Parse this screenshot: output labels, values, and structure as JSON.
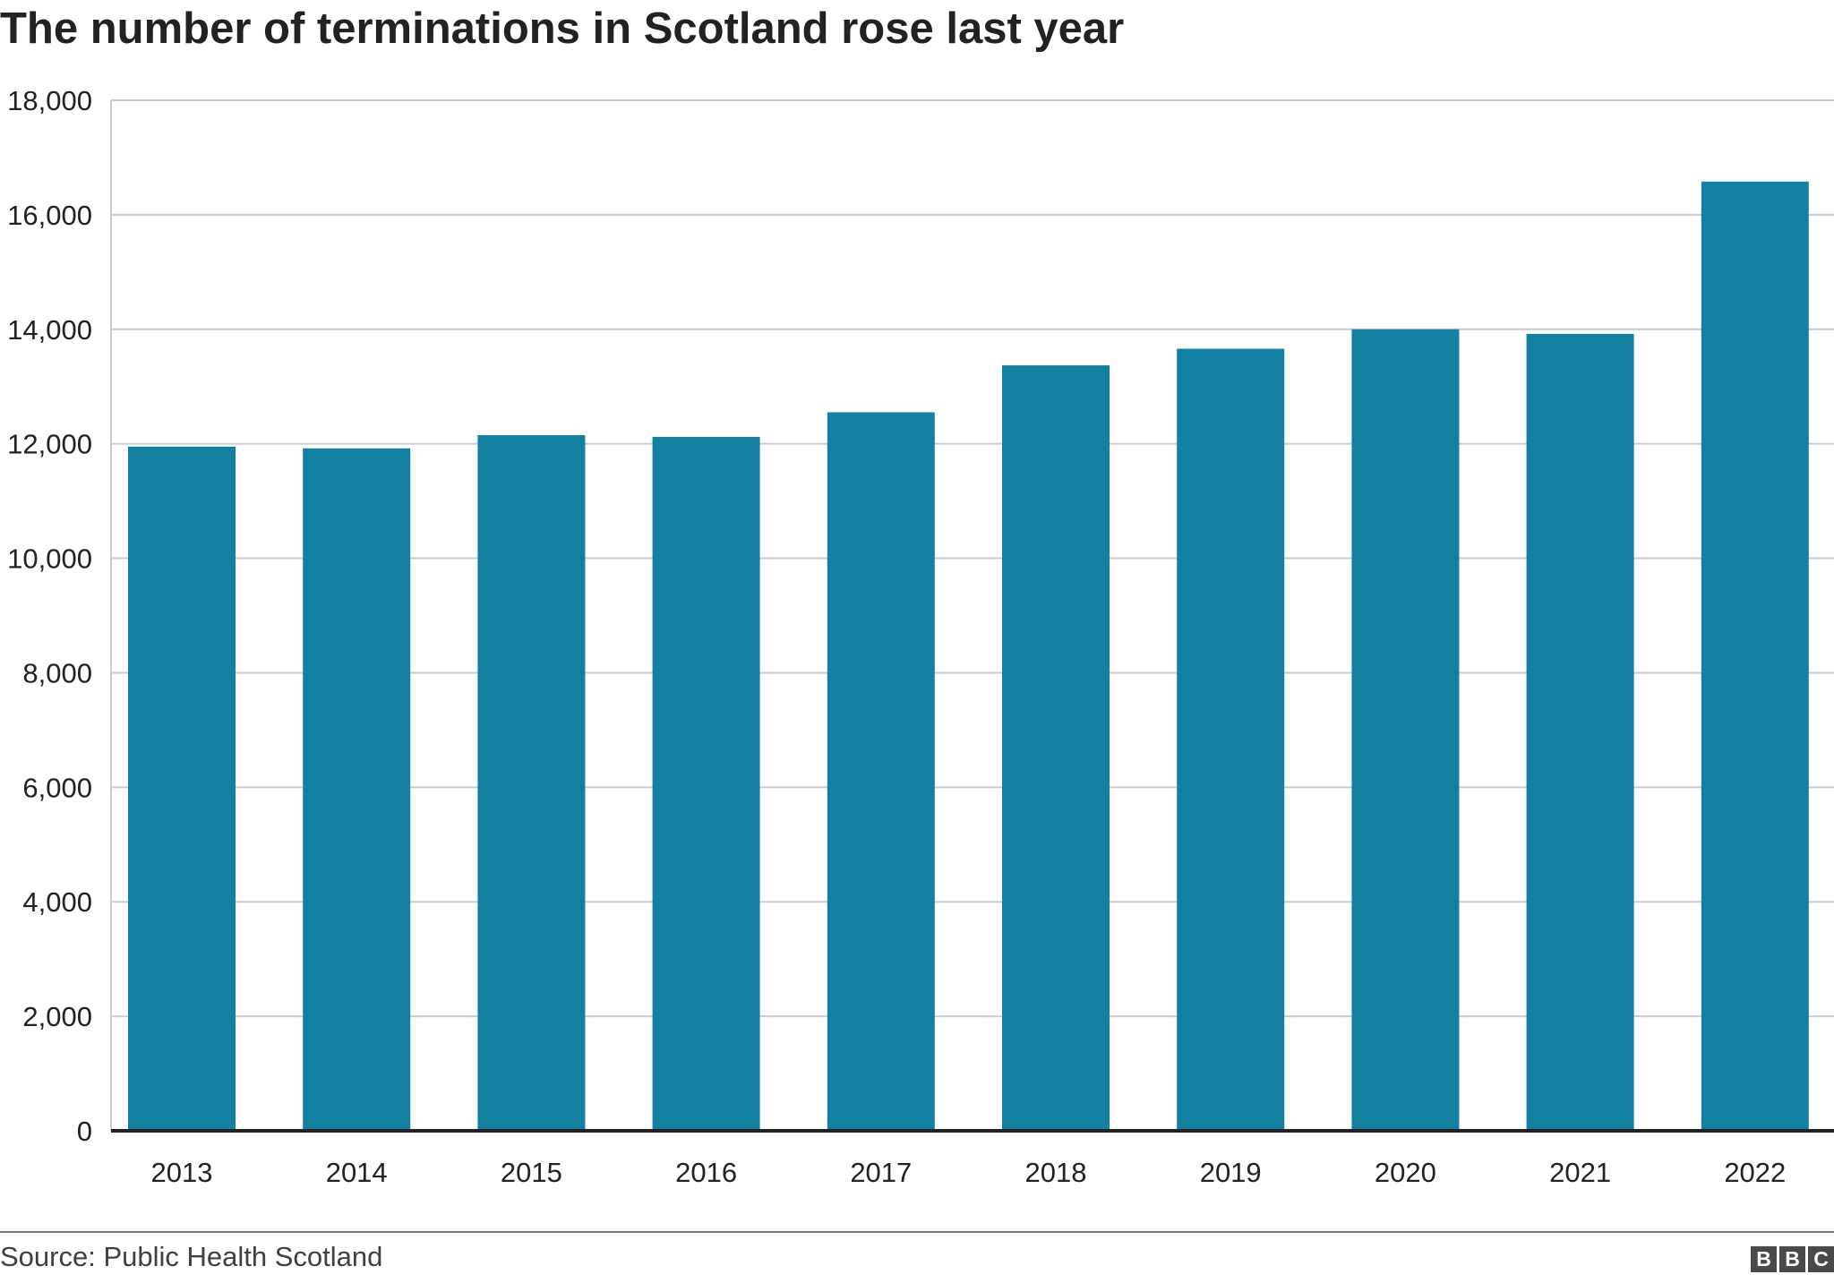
{
  "chart_data": {
    "type": "bar",
    "title": "The number of terminations in Scotland rose last year",
    "categories": [
      "2013",
      "2014",
      "2015",
      "2016",
      "2017",
      "2018",
      "2019",
      "2020",
      "2021",
      "2022"
    ],
    "values": [
      11950,
      11920,
      12150,
      12120,
      12550,
      13370,
      13660,
      14000,
      13920,
      16580
    ],
    "ylim": [
      0,
      18000
    ],
    "yticks": [
      0,
      2000,
      4000,
      6000,
      8000,
      10000,
      12000,
      14000,
      16000,
      18000
    ],
    "ytick_labels": [
      "0",
      "2,000",
      "4,000",
      "6,000",
      "8,000",
      "10,000",
      "12,000",
      "14,000",
      "16,000",
      "18,000"
    ],
    "grid": true,
    "legend": "none",
    "bar_color": "#1380A1",
    "grid_color": "#cbcbcb",
    "baseline_color": "#222222"
  },
  "footer": {
    "source": "Source: Public Health Scotland",
    "logo_letters": [
      "B",
      "B",
      "C"
    ]
  }
}
